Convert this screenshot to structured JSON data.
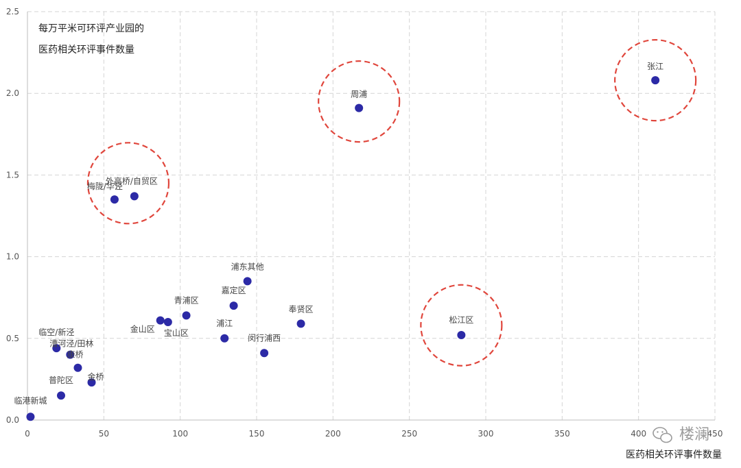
{
  "chart_data": {
    "type": "scatter",
    "title_lines": [
      "每万平米可环评产业园的",
      "医药相关环评事件数量"
    ],
    "xlabel": "医药相关环评事件数量",
    "ylabel": "",
    "xlim": [
      0,
      450
    ],
    "ylim": [
      0,
      2.5
    ],
    "x_ticks": [
      "0",
      "50",
      "100",
      "150",
      "200",
      "250",
      "300",
      "350",
      "400",
      "450"
    ],
    "y_ticks": [
      "0.0",
      "0.5",
      "1.0",
      "1.5",
      "2.0",
      "2.5"
    ],
    "grid": true,
    "point_color": "#2c2aa6",
    "highlight_color": "#e0463c",
    "points": [
      {
        "label": "张江",
        "x": 411,
        "y": 2.08
      },
      {
        "label": "周浦",
        "x": 217,
        "y": 1.91
      },
      {
        "label": "外高桥/自贸区",
        "x": 70,
        "y": 1.37
      },
      {
        "label": "梅陇/华泾",
        "x": 57,
        "y": 1.35
      },
      {
        "label": "浦东其他",
        "x": 144,
        "y": 0.85
      },
      {
        "label": "嘉定区",
        "x": 135,
        "y": 0.7
      },
      {
        "label": "青浦区",
        "x": 104,
        "y": 0.64
      },
      {
        "label": "金山区",
        "x": 87,
        "y": 0.61
      },
      {
        "label": "宝山区",
        "x": 92,
        "y": 0.6
      },
      {
        "label": "奉贤区",
        "x": 179,
        "y": 0.59
      },
      {
        "label": "浦江",
        "x": 129,
        "y": 0.5
      },
      {
        "label": "闵行浦西",
        "x": 155,
        "y": 0.41
      },
      {
        "label": "松江区",
        "x": 284,
        "y": 0.52
      },
      {
        "label": "临空/新泾",
        "x": 19,
        "y": 0.44
      },
      {
        "label": "漕河泾/田林",
        "x": 28,
        "y": 0.4
      },
      {
        "label": "康桥",
        "x": 33,
        "y": 0.32
      },
      {
        "label": "金桥",
        "x": 42,
        "y": 0.23
      },
      {
        "label": "普陀区",
        "x": 22,
        "y": 0.15
      },
      {
        "label": "临港新城",
        "x": 2,
        "y": 0.02
      }
    ],
    "highlighted": [
      "张江",
      "周浦",
      "外高桥/自贸区",
      "松江区"
    ]
  },
  "watermark": "楼澜"
}
